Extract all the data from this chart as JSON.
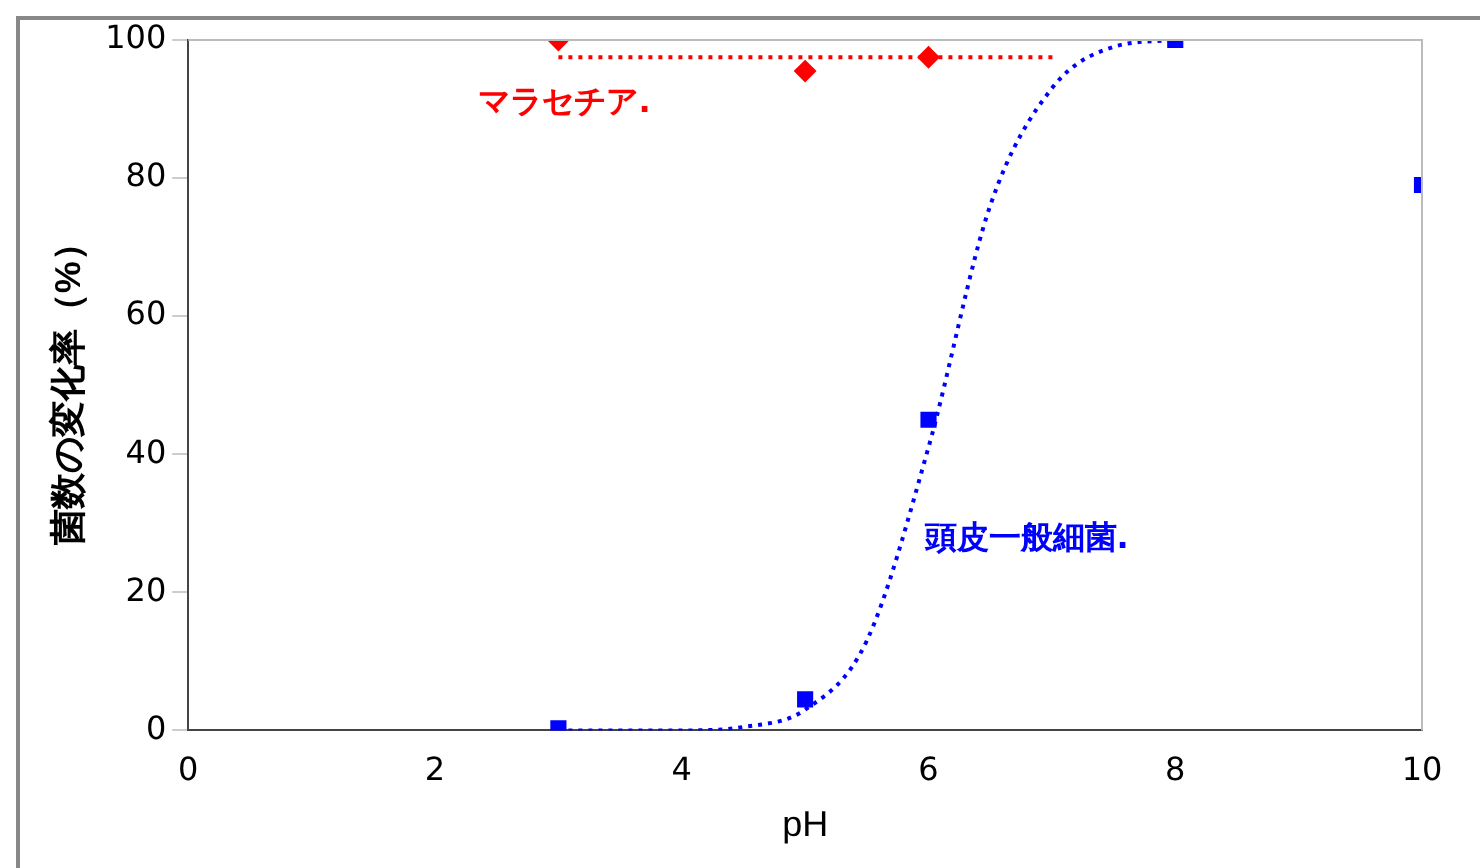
{
  "chart_data": {
    "type": "scatter",
    "xlabel": "pH",
    "ylabel": "菌数の変化率（%）",
    "xlim": [
      0,
      10
    ],
    "ylim": [
      0,
      100
    ],
    "xticks": [
      0,
      2,
      4,
      6,
      8,
      10
    ],
    "yticks": [
      0,
      20,
      40,
      60,
      80,
      100
    ],
    "grid": false,
    "legend": false,
    "series": [
      {
        "name": "マラセチア.",
        "color": "#ff0000",
        "marker": "diamond",
        "x": [
          3,
          5,
          6
        ],
        "values": [
          100,
          95.5,
          97.5
        ]
      },
      {
        "name": "頭皮一般細菌.",
        "color": "#0000ff",
        "marker": "square",
        "x": [
          3,
          5,
          6,
          8,
          10
        ],
        "values": [
          0.3,
          4.5,
          45,
          100,
          79
        ]
      },
      {
        "type": "line",
        "color": "#ff0000",
        "line_style": "dotted",
        "marker": "none",
        "x": [
          3,
          7.05
        ],
        "values": [
          97.5,
          97.5
        ]
      },
      {
        "type": "line",
        "color": "#0000ff",
        "line_style": "dotted",
        "marker": "none",
        "x": [
          3,
          4,
          4.5,
          5,
          5.5,
          6,
          6.5,
          7,
          7.5,
          8
        ],
        "values": [
          0,
          0,
          0.5,
          3,
          13,
          41,
          76,
          93,
          99,
          100
        ]
      }
    ]
  }
}
